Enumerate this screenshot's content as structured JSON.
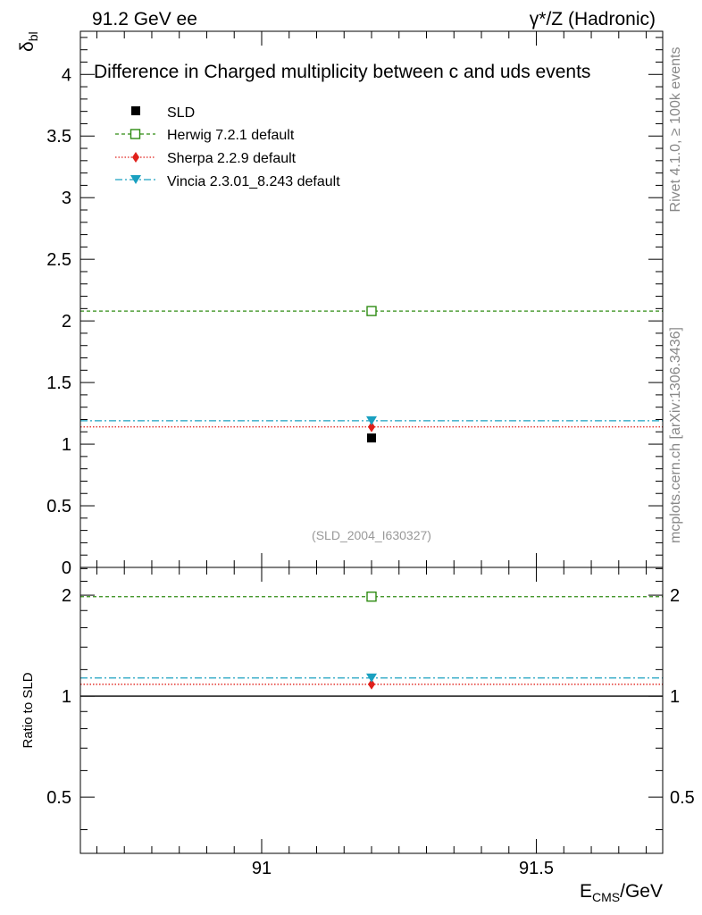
{
  "header": {
    "left": "91.2 GeV ee",
    "right": "γ*/Z (Hadronic)"
  },
  "side_labels": {
    "rivet": "Rivet 4.1.0, ≥ 100k events",
    "mcplots": "mcplots.cern.ch [arXiv:1306.3436]"
  },
  "colors": {
    "data": "#000000",
    "herwig": "#2e8b12",
    "sherpa": "#e0201b",
    "vincia": "#1aa0c0",
    "watermark": "#999999"
  },
  "chart_data": [
    {
      "type": "scatter",
      "title": "Difference in Charged multiplicity between c and uds events",
      "ylabel_main": "δ",
      "ylabel_sub": "bl",
      "xlabel": "",
      "xlim": [
        90.67,
        91.73
      ],
      "ylim": [
        0,
        4.35
      ],
      "yticks": [
        0,
        0.5,
        1,
        1.5,
        2,
        2.5,
        3,
        3.5,
        4
      ],
      "ytick_labels": [
        "0",
        "0.5",
        "1",
        "1.5",
        "2",
        "2.5",
        "3",
        "3.5",
        "4"
      ],
      "watermark": "(SLD_2004_I630327)",
      "series": [
        {
          "name": "SLD",
          "kind": "data",
          "marker": "square-filled",
          "x": [
            91.2
          ],
          "y": [
            1.05
          ]
        },
        {
          "name": "Herwig 7.2.1 default",
          "kind": "mc",
          "marker": "square-open",
          "line": "dashed",
          "x": [
            91.2
          ],
          "y": [
            2.08
          ]
        },
        {
          "name": "Sherpa 2.2.9 default",
          "kind": "mc",
          "marker": "diamond",
          "line": "dotted",
          "x": [
            91.2
          ],
          "y": [
            1.14
          ]
        },
        {
          "name": "Vincia 2.3.01_8.243 default",
          "kind": "mc",
          "marker": "triangle-down",
          "line": "dashdot",
          "x": [
            91.2
          ],
          "y": [
            1.19
          ]
        }
      ]
    },
    {
      "type": "scatter",
      "title": "",
      "ylabel": "Ratio to SLD",
      "xlabel_main": "E",
      "xlabel_sub": "CMS",
      "xlabel_unit": "/GeV",
      "xlim": [
        90.67,
        91.73
      ],
      "ylim": [
        0.34,
        2.42
      ],
      "yscale": "log",
      "yticks": [
        0.5,
        1,
        2
      ],
      "ytick_labels": [
        "0.5",
        "1",
        "2"
      ],
      "xticks": [
        91,
        91.5
      ],
      "xtick_labels": [
        "91",
        "91.5"
      ],
      "series": [
        {
          "name": "Herwig 7.2.1 default",
          "x": [
            91.2
          ],
          "y": [
            1.98
          ]
        },
        {
          "name": "Sherpa 2.2.9 default",
          "x": [
            91.2
          ],
          "y": [
            1.085
          ]
        },
        {
          "name": "Vincia 2.3.01_8.243 default",
          "x": [
            91.2
          ],
          "y": [
            1.133
          ]
        }
      ]
    }
  ]
}
